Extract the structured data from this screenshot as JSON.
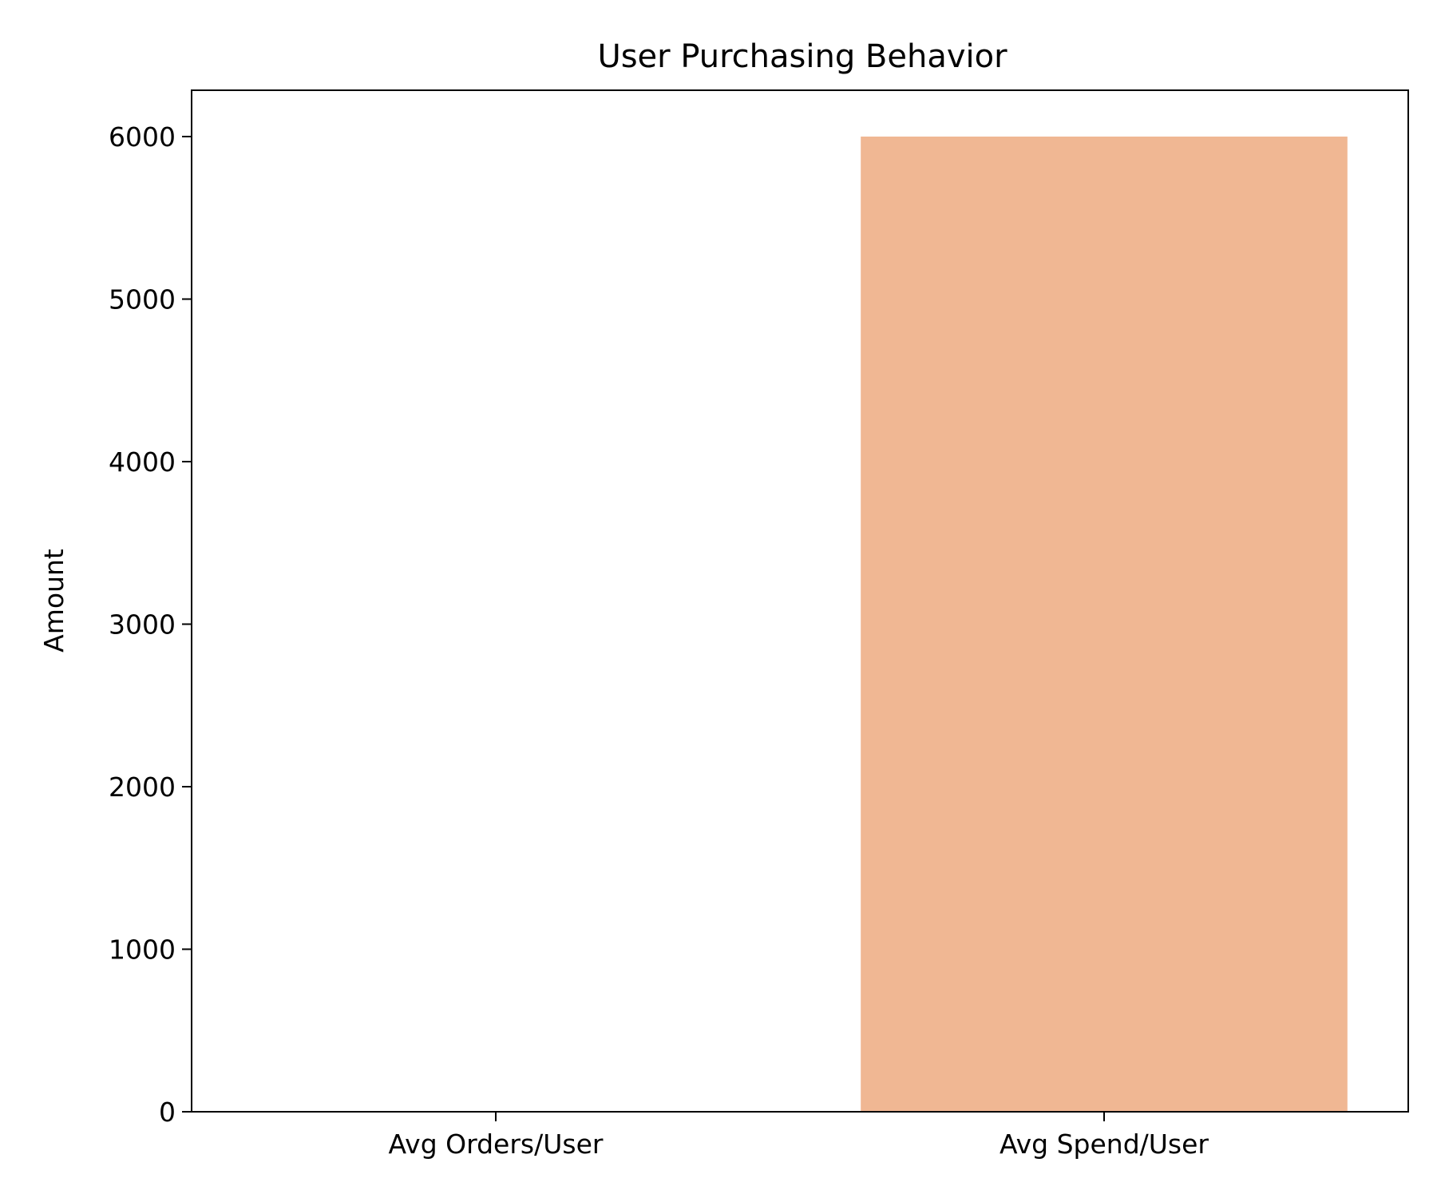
{
  "chart_data": {
    "type": "bar",
    "title": "User Purchasing Behavior",
    "xlabel": "",
    "ylabel": "Amount",
    "categories": [
      "Avg Orders/User",
      "Avg Spend/User"
    ],
    "values": [
      3,
      6000
    ],
    "bar_colors": [
      "#4c72b0",
      "#f0b793"
    ],
    "ylim": [
      0,
      6285
    ],
    "yticks": [
      0,
      1000,
      2000,
      3000,
      4000,
      5000,
      6000
    ],
    "grid": false,
    "legend": "none"
  }
}
